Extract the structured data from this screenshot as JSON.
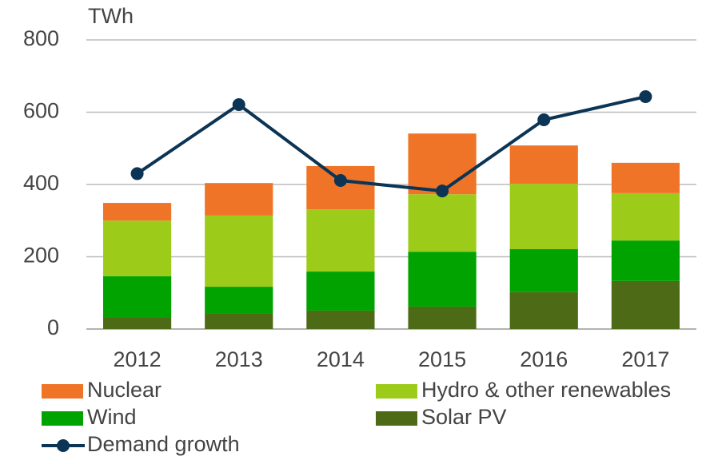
{
  "chart_data": {
    "type": "bar",
    "stacked": true,
    "y_label": "TWh",
    "categories": [
      "2012",
      "2013",
      "2014",
      "2015",
      "2016",
      "2017"
    ],
    "series": [
      {
        "name": "Nuclear",
        "color": "#f07427",
        "values": [
          49,
          90,
          120,
          168,
          106,
          84
        ]
      },
      {
        "name": "Hydro & other renewables",
        "color": "#9dcb1a",
        "values": [
          154,
          197,
          172,
          159,
          181,
          131
        ]
      },
      {
        "name": "Wind",
        "color": "#00a300",
        "values": [
          113,
          73,
          108,
          152,
          119,
          112
        ]
      },
      {
        "name": "Solar PV",
        "color": "#4d6b16",
        "values": [
          33,
          44,
          51,
          62,
          102,
          133
        ]
      },
      {
        "name": "Demand growth",
        "color": "#0b3455",
        "type": "line",
        "values": [
          430,
          621,
          411,
          382,
          579,
          643
        ]
      }
    ],
    "ylim": [
      0,
      800
    ],
    "yticks": [
      0,
      200,
      400,
      600,
      800
    ],
    "grid": true
  }
}
